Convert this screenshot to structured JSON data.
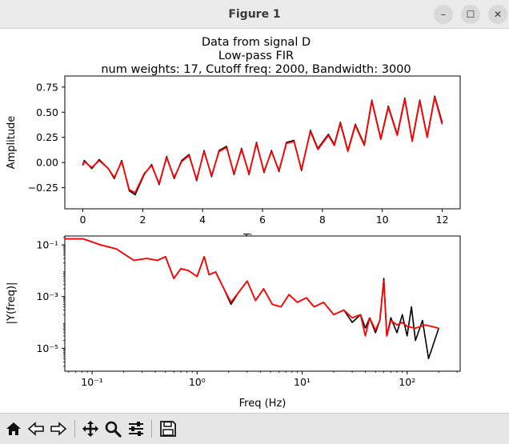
{
  "window": {
    "title": "Figure 1",
    "controls": {
      "minimize": "–",
      "maximize": "☐",
      "close": "✕"
    }
  },
  "toolbar": {
    "buttons": [
      {
        "name": "home-button",
        "icon": "home-icon"
      },
      {
        "name": "back-button",
        "icon": "arrow-left-icon"
      },
      {
        "name": "forward-button",
        "icon": "arrow-right-icon"
      },
      {
        "name": "pan-button",
        "icon": "move-icon"
      },
      {
        "name": "zoom-button",
        "icon": "magnifier-icon"
      },
      {
        "name": "configure-subplots-button",
        "icon": "sliders-icon"
      },
      {
        "name": "save-button",
        "icon": "floppy-disk-icon"
      }
    ]
  },
  "colors": {
    "raw": "#000000",
    "filtered": "#ff0000"
  },
  "chart_data": [
    {
      "type": "line",
      "title": [
        "Data from signal D",
        "Low-pass FIR",
        "num weights: 17, Cutoff freq: 2000, Bandwidth: 3000"
      ],
      "xlabel": "Time",
      "ylabel": "Amplitude",
      "xlim": [
        -0.6,
        12.6
      ],
      "ylim": [
        -0.46,
        0.86
      ],
      "xticks": [
        0,
        2,
        4,
        6,
        8,
        10,
        12
      ],
      "xtick_labels": [
        "0",
        "2",
        "4",
        "6",
        "8",
        "10",
        "12"
      ],
      "yticks": [
        -0.25,
        0.0,
        0.25,
        0.5,
        0.75
      ],
      "ytick_labels": [
        "−0.25",
        "0.00",
        "0.25",
        "0.50",
        "0.75"
      ],
      "series": [
        {
          "color": "#000000",
          "x": [
            0.0,
            0.05,
            0.3,
            0.55,
            0.85,
            1.05,
            1.3,
            1.55,
            1.75,
            2.05,
            2.3,
            2.55,
            2.8,
            3.05,
            3.3,
            3.55,
            3.8,
            4.05,
            4.3,
            4.55,
            4.8,
            5.05,
            5.3,
            5.55,
            5.8,
            6.05,
            6.3,
            6.55,
            6.8,
            7.05,
            7.3,
            7.6,
            7.85,
            8.2,
            8.4,
            8.6,
            8.85,
            9.1,
            9.4,
            9.65,
            9.95,
            10.2,
            10.5,
            10.75,
            11.0,
            11.25,
            11.5,
            11.75,
            12.0
          ],
          "y": [
            -0.02,
            0.02,
            -0.06,
            0.03,
            -0.06,
            -0.16,
            0.02,
            -0.28,
            -0.32,
            -0.12,
            -0.02,
            -0.22,
            0.06,
            -0.16,
            0.02,
            0.08,
            -0.18,
            0.12,
            -0.14,
            0.12,
            0.16,
            -0.12,
            0.14,
            -0.12,
            0.2,
            -0.1,
            0.12,
            -0.09,
            0.2,
            0.22,
            -0.08,
            0.32,
            0.14,
            0.28,
            0.18,
            0.4,
            0.12,
            0.38,
            0.18,
            0.62,
            0.24,
            0.56,
            0.28,
            0.64,
            0.22,
            0.62,
            0.26,
            0.66,
            0.4
          ]
        },
        {
          "color": "#ff0000",
          "x": [
            0.0,
            0.05,
            0.3,
            0.55,
            0.85,
            1.05,
            1.3,
            1.55,
            1.75,
            2.05,
            2.3,
            2.55,
            2.8,
            3.05,
            3.3,
            3.55,
            3.8,
            4.05,
            4.3,
            4.55,
            4.8,
            5.05,
            5.3,
            5.55,
            5.8,
            6.05,
            6.3,
            6.55,
            6.8,
            7.05,
            7.3,
            7.6,
            7.85,
            8.2,
            8.4,
            8.6,
            8.85,
            9.1,
            9.4,
            9.65,
            9.95,
            10.2,
            10.5,
            10.75,
            11.0,
            11.25,
            11.5,
            11.75,
            12.0
          ],
          "y": [
            -0.03,
            0.01,
            -0.05,
            0.02,
            -0.06,
            -0.15,
            0.01,
            -0.27,
            -0.3,
            -0.11,
            -0.03,
            -0.21,
            0.05,
            -0.15,
            0.01,
            0.07,
            -0.17,
            0.11,
            -0.13,
            0.11,
            0.15,
            -0.11,
            0.13,
            -0.11,
            0.19,
            -0.09,
            0.11,
            -0.08,
            0.19,
            0.21,
            -0.07,
            0.31,
            0.13,
            0.27,
            0.17,
            0.39,
            0.11,
            0.37,
            0.17,
            0.61,
            0.23,
            0.55,
            0.27,
            0.63,
            0.21,
            0.61,
            0.25,
            0.65,
            0.38
          ]
        }
      ]
    },
    {
      "type": "line",
      "xscale": "log",
      "yscale": "log",
      "xlabel": "Freq (Hz)",
      "ylabel": "|Y(freq)|",
      "xlim": [
        0.055,
        320
      ],
      "ylim": [
        1.3e-06,
        0.22
      ],
      "xticks": [
        0.1,
        1,
        10,
        100
      ],
      "xtick_labels": [
        "10⁻¹",
        "10⁰",
        "10¹",
        "10²"
      ],
      "yticks": [
        1e-05,
        0.001,
        0.1
      ],
      "ytick_labels": [
        "10⁻⁵",
        "10⁻³",
        "10⁻¹"
      ],
      "series": [
        {
          "color": "#000000",
          "x": [
            0.055,
            0.083,
            0.12,
            0.17,
            0.25,
            0.33,
            0.42,
            0.5,
            0.6,
            0.7,
            0.83,
            1.0,
            1.17,
            1.3,
            1.5,
            1.8,
            2.1,
            2.5,
            3.0,
            3.6,
            4.3,
            5.2,
            6.3,
            7.5,
            9.0,
            11,
            13,
            16,
            20,
            25,
            30,
            36,
            40,
            44,
            50,
            55,
            60,
            64,
            70,
            80,
            90,
            100,
            110,
            120,
            140,
            160,
            200
          ],
          "y": [
            0.17,
            0.17,
            0.1,
            0.07,
            0.025,
            0.03,
            0.025,
            0.035,
            0.005,
            0.012,
            0.01,
            0.006,
            0.035,
            0.007,
            0.009,
            0.002,
            0.0005,
            0.0015,
            0.004,
            0.0007,
            0.002,
            0.0005,
            0.0004,
            0.0012,
            0.0006,
            0.0009,
            0.0004,
            0.0006,
            0.0002,
            0.0003,
            0.0001,
            0.0002,
            6e-05,
            0.00015,
            4e-05,
            0.00012,
            0.005,
            3e-05,
            0.00015,
            4e-05,
            0.0002,
            3e-05,
            0.0004,
            2e-05,
            0.00012,
            4e-06,
            6e-05
          ]
        },
        {
          "color": "#ff0000",
          "x": [
            0.055,
            0.083,
            0.12,
            0.17,
            0.25,
            0.33,
            0.42,
            0.5,
            0.6,
            0.7,
            0.83,
            1.0,
            1.17,
            1.3,
            1.5,
            1.8,
            2.1,
            2.5,
            3.0,
            3.6,
            4.3,
            5.2,
            6.3,
            7.5,
            9.0,
            11,
            13,
            16,
            20,
            25,
            30,
            36,
            40,
            44,
            50,
            55,
            60,
            64,
            70,
            80,
            90,
            100,
            120,
            150,
            200
          ],
          "y": [
            0.17,
            0.17,
            0.1,
            0.07,
            0.025,
            0.03,
            0.025,
            0.035,
            0.005,
            0.012,
            0.01,
            0.006,
            0.035,
            0.007,
            0.009,
            0.002,
            0.0006,
            0.0015,
            0.004,
            0.0007,
            0.002,
            0.0005,
            0.0004,
            0.0012,
            0.0006,
            0.0009,
            0.0004,
            0.0006,
            0.0002,
            0.0003,
            0.00015,
            0.0002,
            3e-05,
            0.00015,
            5e-05,
            0.00012,
            0.004,
            3e-05,
            0.00012,
            8e-05,
            0.0001,
            7e-05,
            6e-05,
            8e-05,
            6e-05
          ]
        }
      ]
    }
  ]
}
